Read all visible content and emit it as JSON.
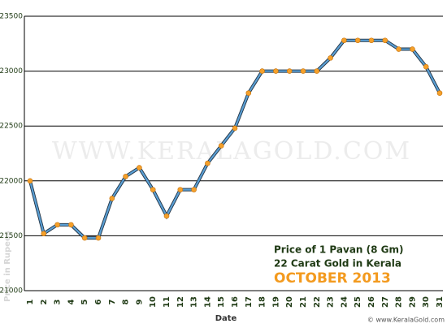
{
  "chart_data": {
    "type": "line",
    "annotations": [
      "Price of 1 Pavan (8 Gm)",
      "22 Carat Gold in Kerala",
      "OCTOBER 2013"
    ],
    "watermark": "WWW.KERALAGOLD.COM",
    "credit": "© www.KeralaGold.com",
    "x_label": "Date",
    "y_label": "Price in Rupees",
    "categories": [
      "1",
      "2",
      "3",
      "4",
      "5",
      "6",
      "7",
      "8",
      "9",
      "10",
      "11",
      "12",
      "13",
      "14",
      "15",
      "16",
      "17",
      "18",
      "19",
      "20",
      "21",
      "22",
      "23",
      "24",
      "25",
      "26",
      "27",
      "28",
      "29",
      "30",
      "31"
    ],
    "series": [
      {
        "name": "Price",
        "color": "#5a9fd4",
        "marker_color": "#f5a02a",
        "values": [
          22000,
          21520,
          21600,
          21600,
          21480,
          21480,
          21840,
          22040,
          22120,
          21920,
          21680,
          21920,
          21920,
          22160,
          22320,
          22480,
          22800,
          23000,
          23000,
          23000,
          23000,
          23000,
          23120,
          23280,
          23280,
          23280,
          23280,
          23200,
          23200,
          23040,
          22800
        ]
      }
    ],
    "ylim": [
      21000,
      23500
    ],
    "yticks": [
      21000,
      21500,
      22000,
      22500,
      23000,
      23500
    ],
    "grid": true
  }
}
